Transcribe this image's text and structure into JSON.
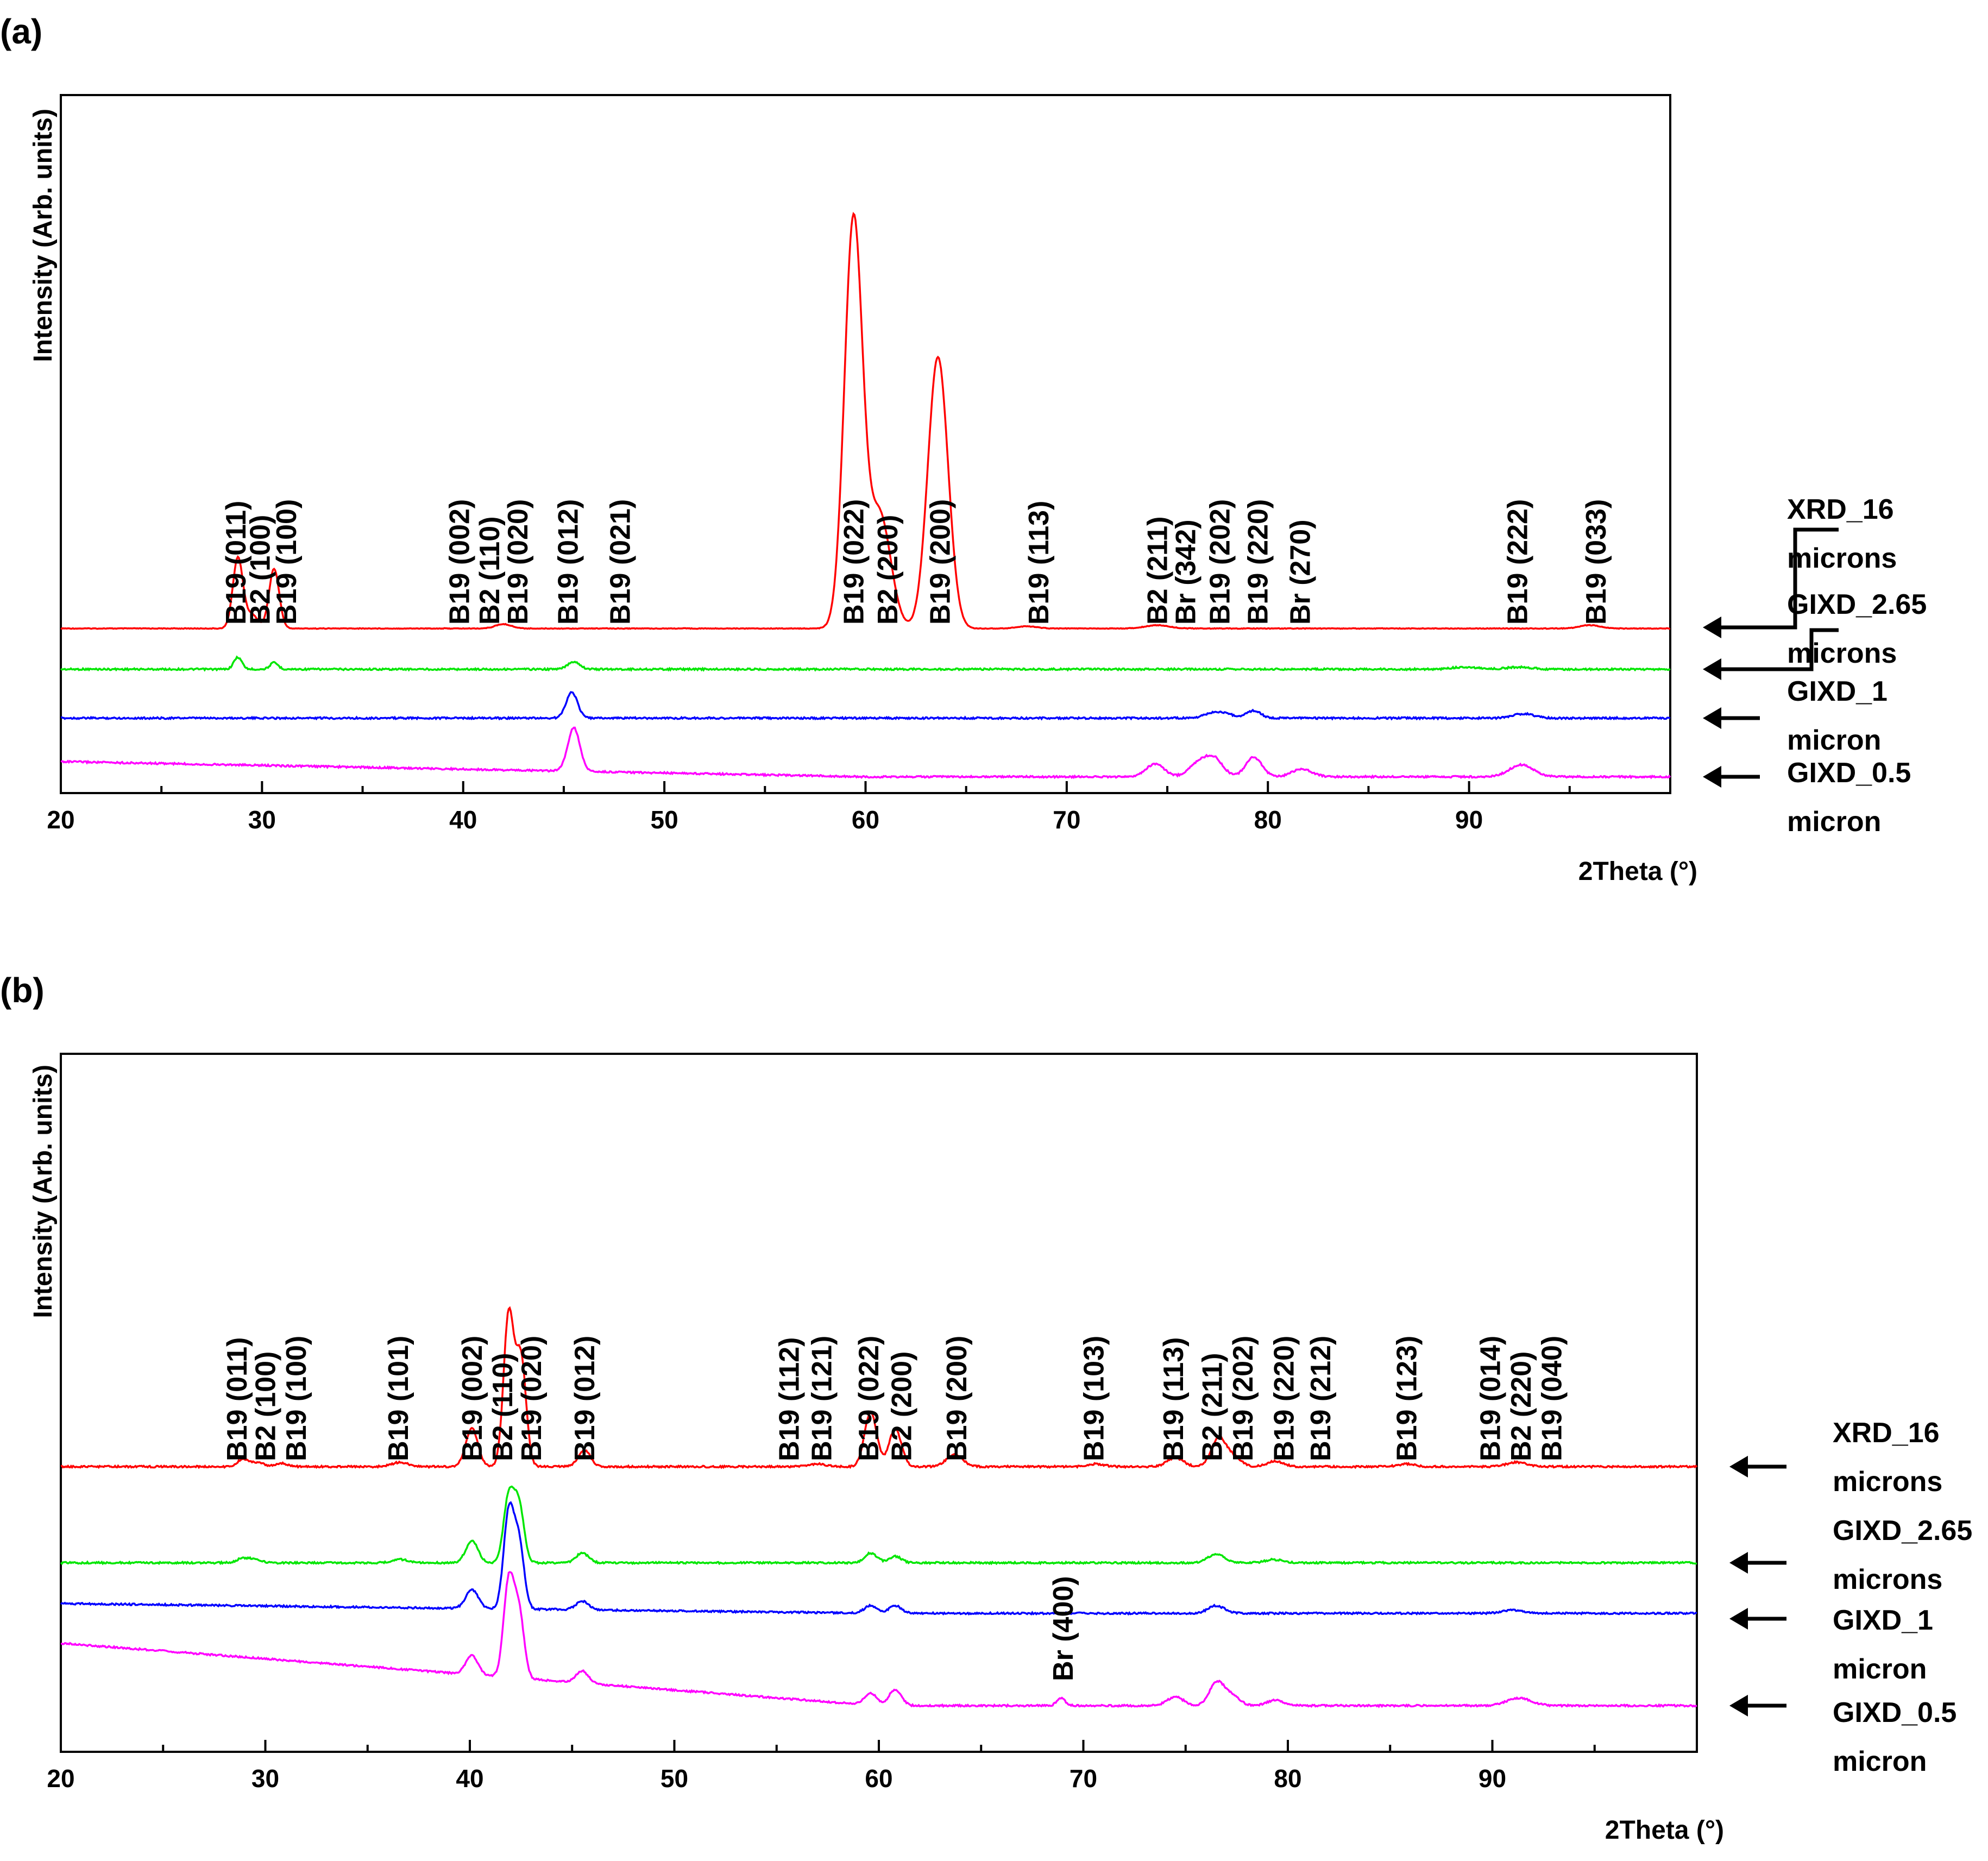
{
  "chart_data": [
    {
      "type": "line",
      "panel_label": "(a)",
      "ylabel": "Intensity (Arb. units)",
      "xlabel": "2Theta (°)",
      "xlim": [
        20,
        100
      ],
      "x_ticks": [
        20,
        30,
        40,
        50,
        60,
        70,
        80,
        90
      ],
      "series": [
        {
          "name": "XRD_16 microns",
          "color": "#ff0000",
          "baseline": 0,
          "peaks": [
            [
              28.8,
              130,
              0.25
            ],
            [
              29.5,
              25,
              0.3
            ],
            [
              30.6,
              110,
              0.25
            ],
            [
              42.0,
              8,
              0.4
            ],
            [
              59.4,
              750,
              0.45
            ],
            [
              60.7,
              210,
              0.55
            ],
            [
              63.6,
              500,
              0.5
            ],
            [
              68.0,
              4,
              0.5
            ],
            [
              74.5,
              6,
              0.6
            ],
            [
              96.0,
              6,
              0.5
            ]
          ]
        },
        {
          "name": "GIXD_2.65 microns",
          "color": "#00e600",
          "baseline": -75,
          "peaks": [
            [
              28.8,
              22,
              0.2
            ],
            [
              30.6,
              12,
              0.2
            ],
            [
              45.5,
              14,
              0.3
            ],
            [
              89.8,
              4,
              0.6
            ],
            [
              92.5,
              4,
              0.6
            ]
          ]
        },
        {
          "name": "GIXD_1 micron",
          "color": "#0000ff",
          "baseline": -165,
          "peaks": [
            [
              45.4,
              48,
              0.28
            ],
            [
              77.2,
              8,
              0.4
            ],
            [
              77.9,
              8,
              0.4
            ],
            [
              79.3,
              14,
              0.35
            ],
            [
              92.7,
              8,
              0.5
            ]
          ]
        },
        {
          "name": "GIXD_0.5 micron",
          "color": "#ff00ff",
          "baseline": -280,
          "slope_start": 28,
          "peaks": [
            [
              45.5,
              80,
              0.3
            ],
            [
              74.4,
              24,
              0.45
            ],
            [
              76.5,
              22,
              0.45
            ],
            [
              77.3,
              34,
              0.45
            ],
            [
              79.3,
              36,
              0.4
            ],
            [
              81.7,
              14,
              0.5
            ],
            [
              92.6,
              22,
              0.6
            ]
          ]
        }
      ],
      "peak_labels": [
        {
          "text": "B19 (011)",
          "x": 28.7
        },
        {
          "text": "B2 (100)",
          "x": 29.9
        },
        {
          "text": "B19 (100)",
          "x": 31.2
        },
        {
          "text": "B19 (002)",
          "x": 39.8
        },
        {
          "text": "B2 (110)",
          "x": 41.3
        },
        {
          "text": "B19 (020)",
          "x": 42.7
        },
        {
          "text": "B19 (012)",
          "x": 45.2
        },
        {
          "text": "B19 (021)",
          "x": 47.8
        },
        {
          "text": "B19 (022)",
          "x": 59.4
        },
        {
          "text": "B2 (200)",
          "x": 61.1
        },
        {
          "text": "B19 (200)",
          "x": 63.7
        },
        {
          "text": "B19 (113)",
          "x": 68.6
        },
        {
          "text": "B2 (211)",
          "x": 74.5
        },
        {
          "text": "Br (342)",
          "x": 75.9
        },
        {
          "text": "B19 (202)",
          "x": 77.6
        },
        {
          "text": "B19 (220)",
          "x": 79.5
        },
        {
          "text": "Br (270)",
          "x": 81.6
        },
        {
          "text": "B19 (222)",
          "x": 92.4
        },
        {
          "text": "B19 (033)",
          "x": 96.3
        }
      ],
      "legend_labels": [
        [
          "XRD_16",
          "microns"
        ],
        [
          "GIXD_2.65",
          "microns"
        ],
        [
          "GIXD_1",
          "micron"
        ],
        [
          "GIXD_0.5",
          "micron"
        ]
      ]
    },
    {
      "type": "line",
      "panel_label": "(b)",
      "ylabel": "Intensity (Arb. units)",
      "xlabel": "2Theta (°)",
      "xlim": [
        20,
        100
      ],
      "x_ticks": [
        20,
        30,
        40,
        50,
        60,
        70,
        80,
        90
      ],
      "series": [
        {
          "name": "XRD_16 microns",
          "color": "#ff0000",
          "baseline": 0,
          "peaks": [
            [
              28.9,
              14,
              0.25
            ],
            [
              29.6,
              8,
              0.3
            ],
            [
              30.8,
              6,
              0.3
            ],
            [
              36.6,
              8,
              0.4
            ],
            [
              40.1,
              70,
              0.3
            ],
            [
              41.9,
              280,
              0.25
            ],
            [
              42.5,
              200,
              0.25
            ],
            [
              45.6,
              30,
              0.3
            ],
            [
              57.0,
              5,
              0.4
            ],
            [
              59.6,
              100,
              0.3
            ],
            [
              60.8,
              70,
              0.3
            ],
            [
              63.7,
              22,
              0.4
            ],
            [
              70.6,
              5,
              0.4
            ],
            [
              74.5,
              16,
              0.4
            ],
            [
              76.6,
              50,
              0.35
            ],
            [
              77.3,
              18,
              0.4
            ],
            [
              79.4,
              10,
              0.4
            ],
            [
              85.8,
              5,
              0.4
            ],
            [
              91.2,
              8,
              0.5
            ]
          ]
        },
        {
          "name": "GIXD_2.65 microns",
          "color": "#00e600",
          "baseline": -175,
          "peaks": [
            [
              28.9,
              8,
              0.3
            ],
            [
              29.5,
              6,
              0.3
            ],
            [
              36.6,
              6,
              0.4
            ],
            [
              40.1,
              40,
              0.3
            ],
            [
              41.9,
              120,
              0.25
            ],
            [
              42.4,
              105,
              0.25
            ],
            [
              45.5,
              18,
              0.3
            ],
            [
              59.6,
              18,
              0.3
            ],
            [
              60.8,
              12,
              0.3
            ],
            [
              76.5,
              16,
              0.4
            ],
            [
              79.3,
              6,
              0.4
            ]
          ]
        },
        {
          "name": "GIXD_1 micron",
          "color": "#0000ff",
          "baseline": -270,
          "slope_start": 18,
          "peaks": [
            [
              40.1,
              35,
              0.3
            ],
            [
              41.9,
              175,
              0.25
            ],
            [
              42.4,
              120,
              0.25
            ],
            [
              45.5,
              16,
              0.3
            ],
            [
              59.6,
              14,
              0.3
            ],
            [
              60.8,
              14,
              0.3
            ],
            [
              76.5,
              14,
              0.4
            ],
            [
              91.0,
              6,
              0.5
            ]
          ]
        },
        {
          "name": "GIXD_0.5 micron",
          "color": "#ff00ff",
          "baseline": -440,
          "slope_start": 115,
          "peaks": [
            [
              40.1,
              35,
              0.3
            ],
            [
              41.9,
              175,
              0.25
            ],
            [
              42.4,
              120,
              0.25
            ],
            [
              45.5,
              22,
              0.3
            ],
            [
              59.6,
              22,
              0.3
            ],
            [
              60.8,
              30,
              0.3
            ],
            [
              68.9,
              14,
              0.2
            ],
            [
              74.5,
              16,
              0.4
            ],
            [
              76.5,
              40,
              0.35
            ],
            [
              77.2,
              20,
              0.4
            ],
            [
              79.4,
              10,
              0.4
            ],
            [
              91.3,
              14,
              0.6
            ]
          ]
        }
      ],
      "peak_labels": [
        {
          "text": "B19 (011)",
          "x": 28.6
        },
        {
          "text": "B2 (100)",
          "x": 30.0
        },
        {
          "text": "B19 (100)",
          "x": 31.5
        },
        {
          "text": "B19 (101)",
          "x": 36.5
        },
        {
          "text": "B19 (002)",
          "x": 40.1
        },
        {
          "text": "B2 (110)",
          "x": 41.6
        },
        {
          "text": "B19 (020)",
          "x": 43.0
        },
        {
          "text": "B19 (012)",
          "x": 45.6
        },
        {
          "text": "B19 (112)",
          "x": 55.6
        },
        {
          "text": "B19 (121)",
          "x": 57.2
        },
        {
          "text": "B19 (022)",
          "x": 59.5
        },
        {
          "text": "B2 (200)",
          "x": 61.1
        },
        {
          "text": "B19 (200)",
          "x": 63.8
        },
        {
          "text": "B19 (103)",
          "x": 70.5
        },
        {
          "text": "B19 (113)",
          "x": 74.4
        },
        {
          "text": "B2 (211)",
          "x": 76.3
        },
        {
          "text": "B19 (202)",
          "x": 77.8
        },
        {
          "text": "B19 (220)",
          "x": 79.8
        },
        {
          "text": "B19 (212)",
          "x": 81.6
        },
        {
          "text": "B19 (123)",
          "x": 85.8
        },
        {
          "text": "B19 (014)",
          "x": 89.9
        },
        {
          "text": "B2 (220)",
          "x": 91.4
        },
        {
          "text": "B19 (040)",
          "x": 92.9
        },
        {
          "text": "Br (400)",
          "x": 69.0,
          "series": 3
        }
      ],
      "legend_labels": [
        [
          "XRD_16",
          "microns"
        ],
        [
          "GIXD_2.65",
          "microns"
        ],
        [
          "GIXD_1",
          "micron"
        ],
        [
          "GIXD_0.5",
          "micron"
        ]
      ]
    }
  ]
}
